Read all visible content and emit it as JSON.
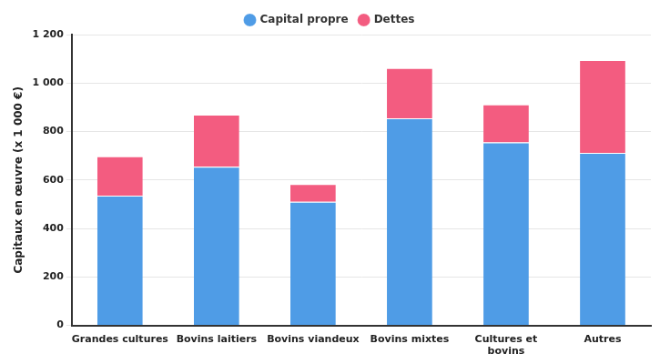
{
  "chart_data": {
    "type": "bar",
    "stacked": true,
    "y_label": "Capitaux en œuvre (x 1 000 €)",
    "categories": [
      "Grandes cultures",
      "Bovins laitiers",
      "Bovins viandeux",
      "Bovins mixtes",
      "Cultures et bovins",
      "Autres"
    ],
    "series": [
      {
        "name": "Capital propre",
        "color": "#4f9ce6",
        "values": [
          535,
          655,
          510,
          855,
          755,
          712
        ]
      },
      {
        "name": "Dettes",
        "color": "#f35c80",
        "values": [
          163,
          215,
          73,
          207,
          157,
          383
        ]
      }
    ],
    "ylim": [
      0,
      1200
    ],
    "yticks": [
      0,
      200,
      400,
      600,
      800,
      {
        "value": 1000,
        "label": "1 000"
      },
      {
        "value": 1200,
        "label": "1 200"
      }
    ],
    "grid": true,
    "legend": "top"
  }
}
